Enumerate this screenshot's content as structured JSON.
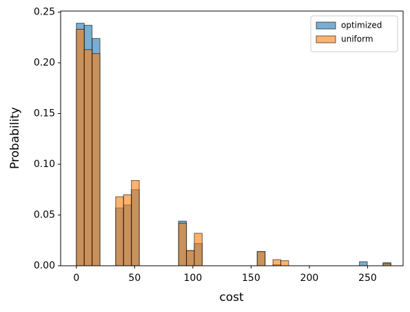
{
  "chart_data": {
    "type": "histogram",
    "x_label": "cost",
    "y_label": "Probability",
    "bins": [
      0,
      6.75,
      13.5,
      20.25,
      27,
      33.75,
      40.5,
      47.25,
      54,
      60.75,
      67.5,
      74.25,
      81,
      87.75,
      94.5,
      101.25,
      108,
      114.75,
      121.5,
      128.25,
      135,
      141.75,
      148.5,
      155.25,
      162,
      168.75,
      175.5,
      182.25,
      189,
      195.75,
      202.5,
      209.25,
      216,
      222.75,
      229.5,
      236.25,
      243,
      249.75,
      256.5,
      263.25,
      270
    ],
    "series": [
      {
        "name": "optimized",
        "color": "#1f77b4",
        "values": [
          0.239,
          0.237,
          0.224,
          0,
          0,
          0.057,
          0.06,
          0.075,
          0,
          0,
          0,
          0,
          0,
          0.044,
          0.015,
          0.022,
          0,
          0,
          0,
          0,
          0,
          0,
          0,
          0.014,
          0,
          0.001,
          0,
          0,
          0,
          0,
          0,
          0,
          0,
          0,
          0,
          0,
          0.004,
          0,
          0,
          0.003
        ]
      },
      {
        "name": "uniform",
        "color": "#ff7f0e",
        "values": [
          0.233,
          0.213,
          0.209,
          0,
          0,
          0.068,
          0.07,
          0.084,
          0,
          0,
          0,
          0,
          0,
          0.042,
          0.015,
          0.032,
          0,
          0,
          0,
          0,
          0,
          0,
          0,
          0.014,
          0,
          0.006,
          0.005,
          0,
          0,
          0,
          0,
          0,
          0,
          0,
          0,
          0,
          0,
          0,
          0,
          0.002
        ]
      }
    ],
    "xlim": [
      -13.5,
      280.5
    ],
    "ylim": [
      0,
      0.251
    ],
    "xticks": [
      0,
      50,
      100,
      150,
      200,
      250
    ],
    "yticks": [
      {
        "value": 0,
        "label": "0.00"
      },
      {
        "value": 0.05,
        "label": "0.05"
      },
      {
        "value": 0.1,
        "label": "0.10"
      },
      {
        "value": 0.15,
        "label": "0.15"
      },
      {
        "value": 0.2,
        "label": "0.20"
      },
      {
        "value": 0.25,
        "label": "0.25"
      }
    ],
    "legend": "upper right"
  }
}
